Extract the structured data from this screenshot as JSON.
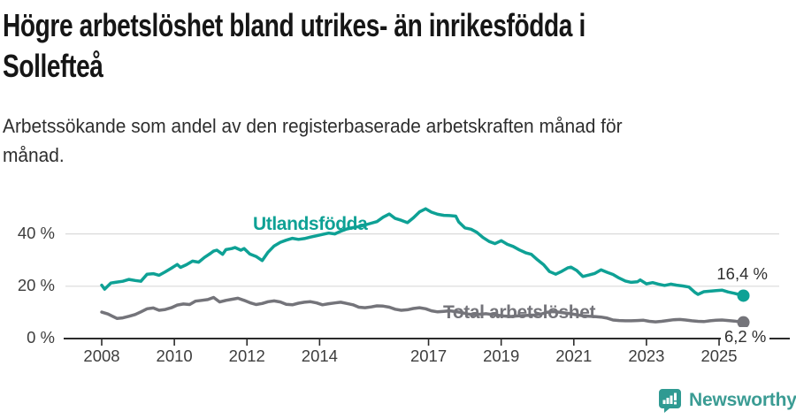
{
  "title_lines": [
    "Högre arbetslöshet bland utrikes- än inrikesfödda i",
    "Sollefteå"
  ],
  "subtitle_lines": [
    "Arbetssökande som andel av den registerbaserade arbetskraften månad för",
    "månad."
  ],
  "chart_data": {
    "type": "line",
    "title": "Högre arbetslöshet bland utrikes- än inrikesfödda i Sollefteå",
    "xlabel": "",
    "ylabel": "Arbetssökande som andel av den registerbaserade arbetskraften (%)",
    "x_range": [
      2008,
      2025.67
    ],
    "y_range": [
      0,
      52
    ],
    "grid": "horizontal",
    "legend_position": "inline-labels",
    "colors": {
      "grid": "#dadada",
      "axis": "#2b2b2b",
      "tick_text": "#3d3d3d"
    },
    "x_ticks": [
      {
        "value": 2008,
        "label": "2008"
      },
      {
        "value": 2010,
        "label": "2010"
      },
      {
        "value": 2012,
        "label": "2012"
      },
      {
        "value": 2014,
        "label": "2014"
      },
      {
        "value": 2017,
        "label": "2017"
      },
      {
        "value": 2019,
        "label": "2019"
      },
      {
        "value": 2021,
        "label": "2021"
      },
      {
        "value": 2023,
        "label": "2023"
      },
      {
        "value": 2025,
        "label": "2025"
      }
    ],
    "y_ticks": [
      {
        "value": 0,
        "label": "0 %"
      },
      {
        "value": 20,
        "label": "20 %"
      },
      {
        "value": 40,
        "label": "40 %"
      }
    ],
    "series": [
      {
        "name": "Utlandsfödda",
        "color": "#0ea195",
        "line_width": 3.5,
        "end_value": 16.4,
        "end_label": "16,4 %",
        "points": [
          [
            2008.0,
            20.4
          ],
          [
            2008.08,
            18.9
          ],
          [
            2008.25,
            21.2
          ],
          [
            2008.42,
            21.6
          ],
          [
            2008.58,
            21.9
          ],
          [
            2008.75,
            22.6
          ],
          [
            2008.92,
            22.2
          ],
          [
            2009.08,
            21.9
          ],
          [
            2009.25,
            24.6
          ],
          [
            2009.42,
            24.8
          ],
          [
            2009.58,
            24.2
          ],
          [
            2009.75,
            25.5
          ],
          [
            2009.92,
            26.9
          ],
          [
            2010.08,
            28.3
          ],
          [
            2010.17,
            27.2
          ],
          [
            2010.33,
            28.2
          ],
          [
            2010.5,
            29.6
          ],
          [
            2010.67,
            29.2
          ],
          [
            2010.83,
            31.0
          ],
          [
            2011.0,
            32.6
          ],
          [
            2011.08,
            33.4
          ],
          [
            2011.17,
            33.8
          ],
          [
            2011.33,
            32.2
          ],
          [
            2011.42,
            34.0
          ],
          [
            2011.58,
            34.4
          ],
          [
            2011.67,
            34.8
          ],
          [
            2011.83,
            33.8
          ],
          [
            2011.92,
            34.4
          ],
          [
            2012.08,
            32.3
          ],
          [
            2012.25,
            31.4
          ],
          [
            2012.42,
            29.8
          ],
          [
            2012.58,
            33.0
          ],
          [
            2012.75,
            35.4
          ],
          [
            2012.92,
            36.8
          ],
          [
            2013.08,
            37.6
          ],
          [
            2013.25,
            38.3
          ],
          [
            2013.42,
            37.9
          ],
          [
            2013.58,
            38.2
          ],
          [
            2013.75,
            38.8
          ],
          [
            2013.92,
            39.3
          ],
          [
            2014.08,
            39.8
          ],
          [
            2014.25,
            40.3
          ],
          [
            2014.42,
            40.0
          ],
          [
            2014.58,
            41.0
          ],
          [
            2014.75,
            41.9
          ],
          [
            2014.92,
            42.4
          ],
          [
            2015.08,
            42.8
          ],
          [
            2015.25,
            43.4
          ],
          [
            2015.42,
            44.1
          ],
          [
            2015.58,
            44.7
          ],
          [
            2015.75,
            46.4
          ],
          [
            2015.92,
            47.6
          ],
          [
            2016.08,
            45.9
          ],
          [
            2016.25,
            45.2
          ],
          [
            2016.42,
            44.3
          ],
          [
            2016.58,
            46.1
          ],
          [
            2016.75,
            48.4
          ],
          [
            2016.92,
            49.6
          ],
          [
            2017.08,
            48.3
          ],
          [
            2017.25,
            47.5
          ],
          [
            2017.42,
            47.1
          ],
          [
            2017.58,
            47.0
          ],
          [
            2017.75,
            46.8
          ],
          [
            2017.83,
            44.6
          ],
          [
            2018.0,
            42.3
          ],
          [
            2018.17,
            41.8
          ],
          [
            2018.33,
            40.6
          ],
          [
            2018.5,
            38.6
          ],
          [
            2018.67,
            37.1
          ],
          [
            2018.83,
            36.3
          ],
          [
            2019.0,
            37.4
          ],
          [
            2019.17,
            36.0
          ],
          [
            2019.33,
            35.2
          ],
          [
            2019.5,
            33.9
          ],
          [
            2019.67,
            32.8
          ],
          [
            2019.83,
            32.2
          ],
          [
            2020.0,
            30.1
          ],
          [
            2020.17,
            28.2
          ],
          [
            2020.33,
            25.6
          ],
          [
            2020.5,
            24.6
          ],
          [
            2020.67,
            25.7
          ],
          [
            2020.83,
            27.0
          ],
          [
            2020.92,
            27.3
          ],
          [
            2021.08,
            26.0
          ],
          [
            2021.25,
            23.7
          ],
          [
            2021.42,
            24.3
          ],
          [
            2021.58,
            24.9
          ],
          [
            2021.75,
            26.3
          ],
          [
            2021.92,
            25.3
          ],
          [
            2022.08,
            24.5
          ],
          [
            2022.25,
            23.1
          ],
          [
            2022.42,
            22.0
          ],
          [
            2022.58,
            21.5
          ],
          [
            2022.75,
            21.7
          ],
          [
            2022.83,
            22.4
          ],
          [
            2023.0,
            20.9
          ],
          [
            2023.17,
            21.4
          ],
          [
            2023.33,
            20.8
          ],
          [
            2023.5,
            20.3
          ],
          [
            2023.67,
            20.8
          ],
          [
            2023.83,
            20.4
          ],
          [
            2024.0,
            20.1
          ],
          [
            2024.17,
            19.7
          ],
          [
            2024.33,
            17.7
          ],
          [
            2024.42,
            16.9
          ],
          [
            2024.58,
            17.9
          ],
          [
            2024.75,
            18.1
          ],
          [
            2024.92,
            18.3
          ],
          [
            2025.08,
            18.5
          ],
          [
            2025.25,
            17.8
          ],
          [
            2025.42,
            17.3
          ],
          [
            2025.67,
            16.4
          ]
        ]
      },
      {
        "name": "Total arbetslöshet",
        "color": "#74747a",
        "line_width": 3.5,
        "end_value": 6.2,
        "end_label": "6,2 %",
        "points": [
          [
            2008.0,
            10.1
          ],
          [
            2008.17,
            9.4
          ],
          [
            2008.42,
            7.7
          ],
          [
            2008.58,
            7.9
          ],
          [
            2008.75,
            8.5
          ],
          [
            2008.92,
            9.2
          ],
          [
            2009.08,
            10.2
          ],
          [
            2009.25,
            11.4
          ],
          [
            2009.42,
            11.7
          ],
          [
            2009.58,
            10.8
          ],
          [
            2009.75,
            11.1
          ],
          [
            2009.92,
            11.8
          ],
          [
            2010.08,
            12.8
          ],
          [
            2010.25,
            13.2
          ],
          [
            2010.42,
            13.0
          ],
          [
            2010.58,
            14.3
          ],
          [
            2010.75,
            14.6
          ],
          [
            2010.92,
            14.9
          ],
          [
            2011.08,
            15.7
          ],
          [
            2011.25,
            14.0
          ],
          [
            2011.42,
            14.6
          ],
          [
            2011.58,
            15.0
          ],
          [
            2011.75,
            15.4
          ],
          [
            2011.92,
            14.6
          ],
          [
            2012.08,
            13.7
          ],
          [
            2012.25,
            13.0
          ],
          [
            2012.42,
            13.4
          ],
          [
            2012.58,
            14.1
          ],
          [
            2012.75,
            14.4
          ],
          [
            2012.92,
            14.0
          ],
          [
            2013.08,
            13.1
          ],
          [
            2013.25,
            12.9
          ],
          [
            2013.42,
            13.5
          ],
          [
            2013.58,
            13.9
          ],
          [
            2013.75,
            14.1
          ],
          [
            2013.92,
            13.6
          ],
          [
            2014.08,
            12.9
          ],
          [
            2014.25,
            13.3
          ],
          [
            2014.42,
            13.6
          ],
          [
            2014.58,
            13.9
          ],
          [
            2014.75,
            13.4
          ],
          [
            2014.92,
            12.9
          ],
          [
            2015.08,
            12.0
          ],
          [
            2015.25,
            11.8
          ],
          [
            2015.42,
            12.1
          ],
          [
            2015.58,
            12.5
          ],
          [
            2015.75,
            12.4
          ],
          [
            2015.92,
            12.0
          ],
          [
            2016.08,
            11.2
          ],
          [
            2016.25,
            10.8
          ],
          [
            2016.42,
            11.0
          ],
          [
            2016.58,
            11.5
          ],
          [
            2016.75,
            11.8
          ],
          [
            2016.92,
            11.4
          ],
          [
            2017.08,
            10.6
          ],
          [
            2017.25,
            10.2
          ],
          [
            2017.42,
            10.4
          ],
          [
            2017.58,
            10.6
          ],
          [
            2017.75,
            10.3
          ],
          [
            2017.92,
            9.9
          ],
          [
            2018.08,
            9.4
          ],
          [
            2018.25,
            9.1
          ],
          [
            2018.42,
            9.3
          ],
          [
            2018.58,
            9.5
          ],
          [
            2018.75,
            9.2
          ],
          [
            2018.92,
            8.9
          ],
          [
            2019.08,
            8.6
          ],
          [
            2019.25,
            8.4
          ],
          [
            2019.42,
            8.6
          ],
          [
            2019.58,
            8.8
          ],
          [
            2019.75,
            8.9
          ],
          [
            2019.92,
            9.0
          ],
          [
            2020.08,
            9.3
          ],
          [
            2020.25,
            10.0
          ],
          [
            2020.42,
            10.3
          ],
          [
            2020.58,
            10.1
          ],
          [
            2020.75,
            9.8
          ],
          [
            2020.92,
            9.5
          ],
          [
            2021.08,
            9.1
          ],
          [
            2021.25,
            8.7
          ],
          [
            2021.42,
            8.5
          ],
          [
            2021.58,
            8.4
          ],
          [
            2021.75,
            8.2
          ],
          [
            2021.92,
            7.8
          ],
          [
            2022.08,
            7.1
          ],
          [
            2022.25,
            6.9
          ],
          [
            2022.42,
            6.8
          ],
          [
            2022.58,
            6.8
          ],
          [
            2022.75,
            6.9
          ],
          [
            2022.92,
            7.0
          ],
          [
            2023.08,
            6.6
          ],
          [
            2023.25,
            6.4
          ],
          [
            2023.42,
            6.6
          ],
          [
            2023.58,
            6.9
          ],
          [
            2023.75,
            7.2
          ],
          [
            2023.92,
            7.3
          ],
          [
            2024.08,
            7.1
          ],
          [
            2024.25,
            6.8
          ],
          [
            2024.42,
            6.6
          ],
          [
            2024.58,
            6.5
          ],
          [
            2024.75,
            6.8
          ],
          [
            2024.92,
            7.0
          ],
          [
            2025.08,
            7.1
          ],
          [
            2025.25,
            6.9
          ],
          [
            2025.42,
            6.7
          ],
          [
            2025.67,
            6.2
          ]
        ]
      }
    ]
  },
  "footer": {
    "brand": "Newsworthy",
    "logo_color": "#2f9a92",
    "text_color": "#3b9c94"
  }
}
